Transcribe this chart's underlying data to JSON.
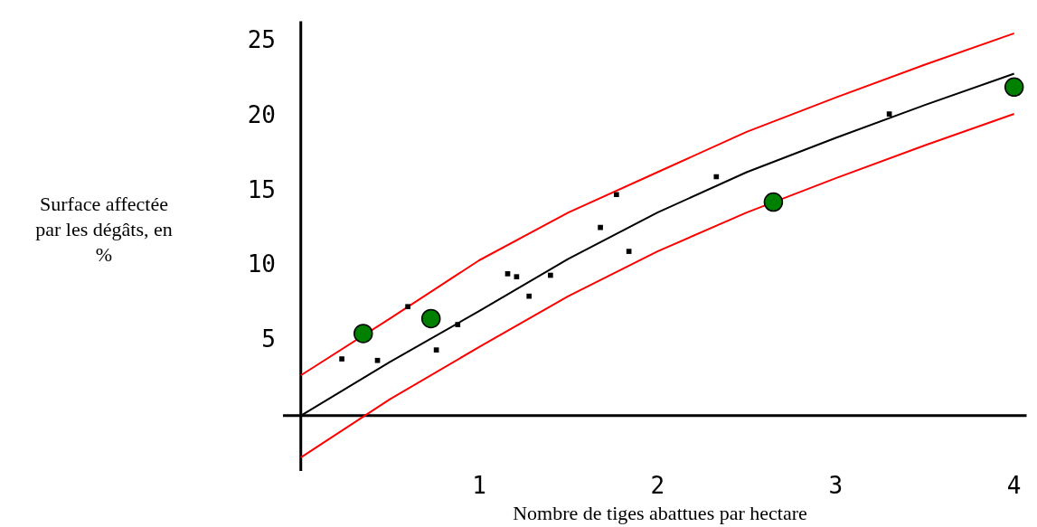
{
  "chart_data": {
    "type": "scatter",
    "xlabel": "Nombre de tiges abattues par hectare",
    "ylabel": "Surface affectée par les dégâts, en %",
    "xlim": [
      -0.1,
      4.07
    ],
    "ylim": [
      -3.7,
      26.4
    ],
    "xticks": [
      1,
      2,
      3,
      4
    ],
    "yticks": [
      5,
      10,
      15,
      20,
      25
    ],
    "grid": false,
    "legend": false,
    "series": [
      {
        "type": "line",
        "color": "#000000",
        "marker": "none",
        "x": [
          0,
          0.5,
          1,
          1.5,
          2,
          2.5,
          3,
          3.5,
          4
        ],
        "values": [
          0,
          3.6,
          7.0,
          10.5,
          13.6,
          16.3,
          18.6,
          20.8,
          22.9
        ]
      },
      {
        "type": "line",
        "color": "#ff0000",
        "marker": "none",
        "x": [
          0,
          0.5,
          1,
          1.5,
          2,
          2.5,
          3,
          3.5,
          4
        ],
        "values": [
          2.7,
          6.5,
          10.4,
          13.6,
          16.3,
          19.0,
          21.3,
          23.5,
          25.6
        ]
      },
      {
        "type": "line",
        "color": "#ff0000",
        "marker": "none",
        "x": [
          0,
          0.5,
          1,
          1.5,
          2,
          2.5,
          3,
          3.5,
          4
        ],
        "values": [
          -2.8,
          1.1,
          4.6,
          8.0,
          11.0,
          13.6,
          15.9,
          18.1,
          20.2
        ]
      },
      {
        "type": "scatter",
        "color": "#000000",
        "marker": "square",
        "x": [
          0.23,
          0.43,
          0.6,
          0.76,
          0.88,
          1.16,
          1.21,
          1.28,
          1.4,
          1.68,
          1.77,
          1.84,
          2.33,
          3.3
        ],
        "values": [
          3.8,
          3.7,
          7.3,
          4.4,
          6.1,
          9.5,
          9.3,
          8.0,
          9.4,
          12.6,
          14.8,
          11.0,
          16.0,
          20.2
        ]
      },
      {
        "type": "scatter",
        "color": "#008000",
        "marker": "circle",
        "x": [
          0.35,
          0.73,
          2.65,
          4.0
        ],
        "values": [
          5.5,
          6.5,
          14.3,
          22.0
        ]
      }
    ]
  }
}
